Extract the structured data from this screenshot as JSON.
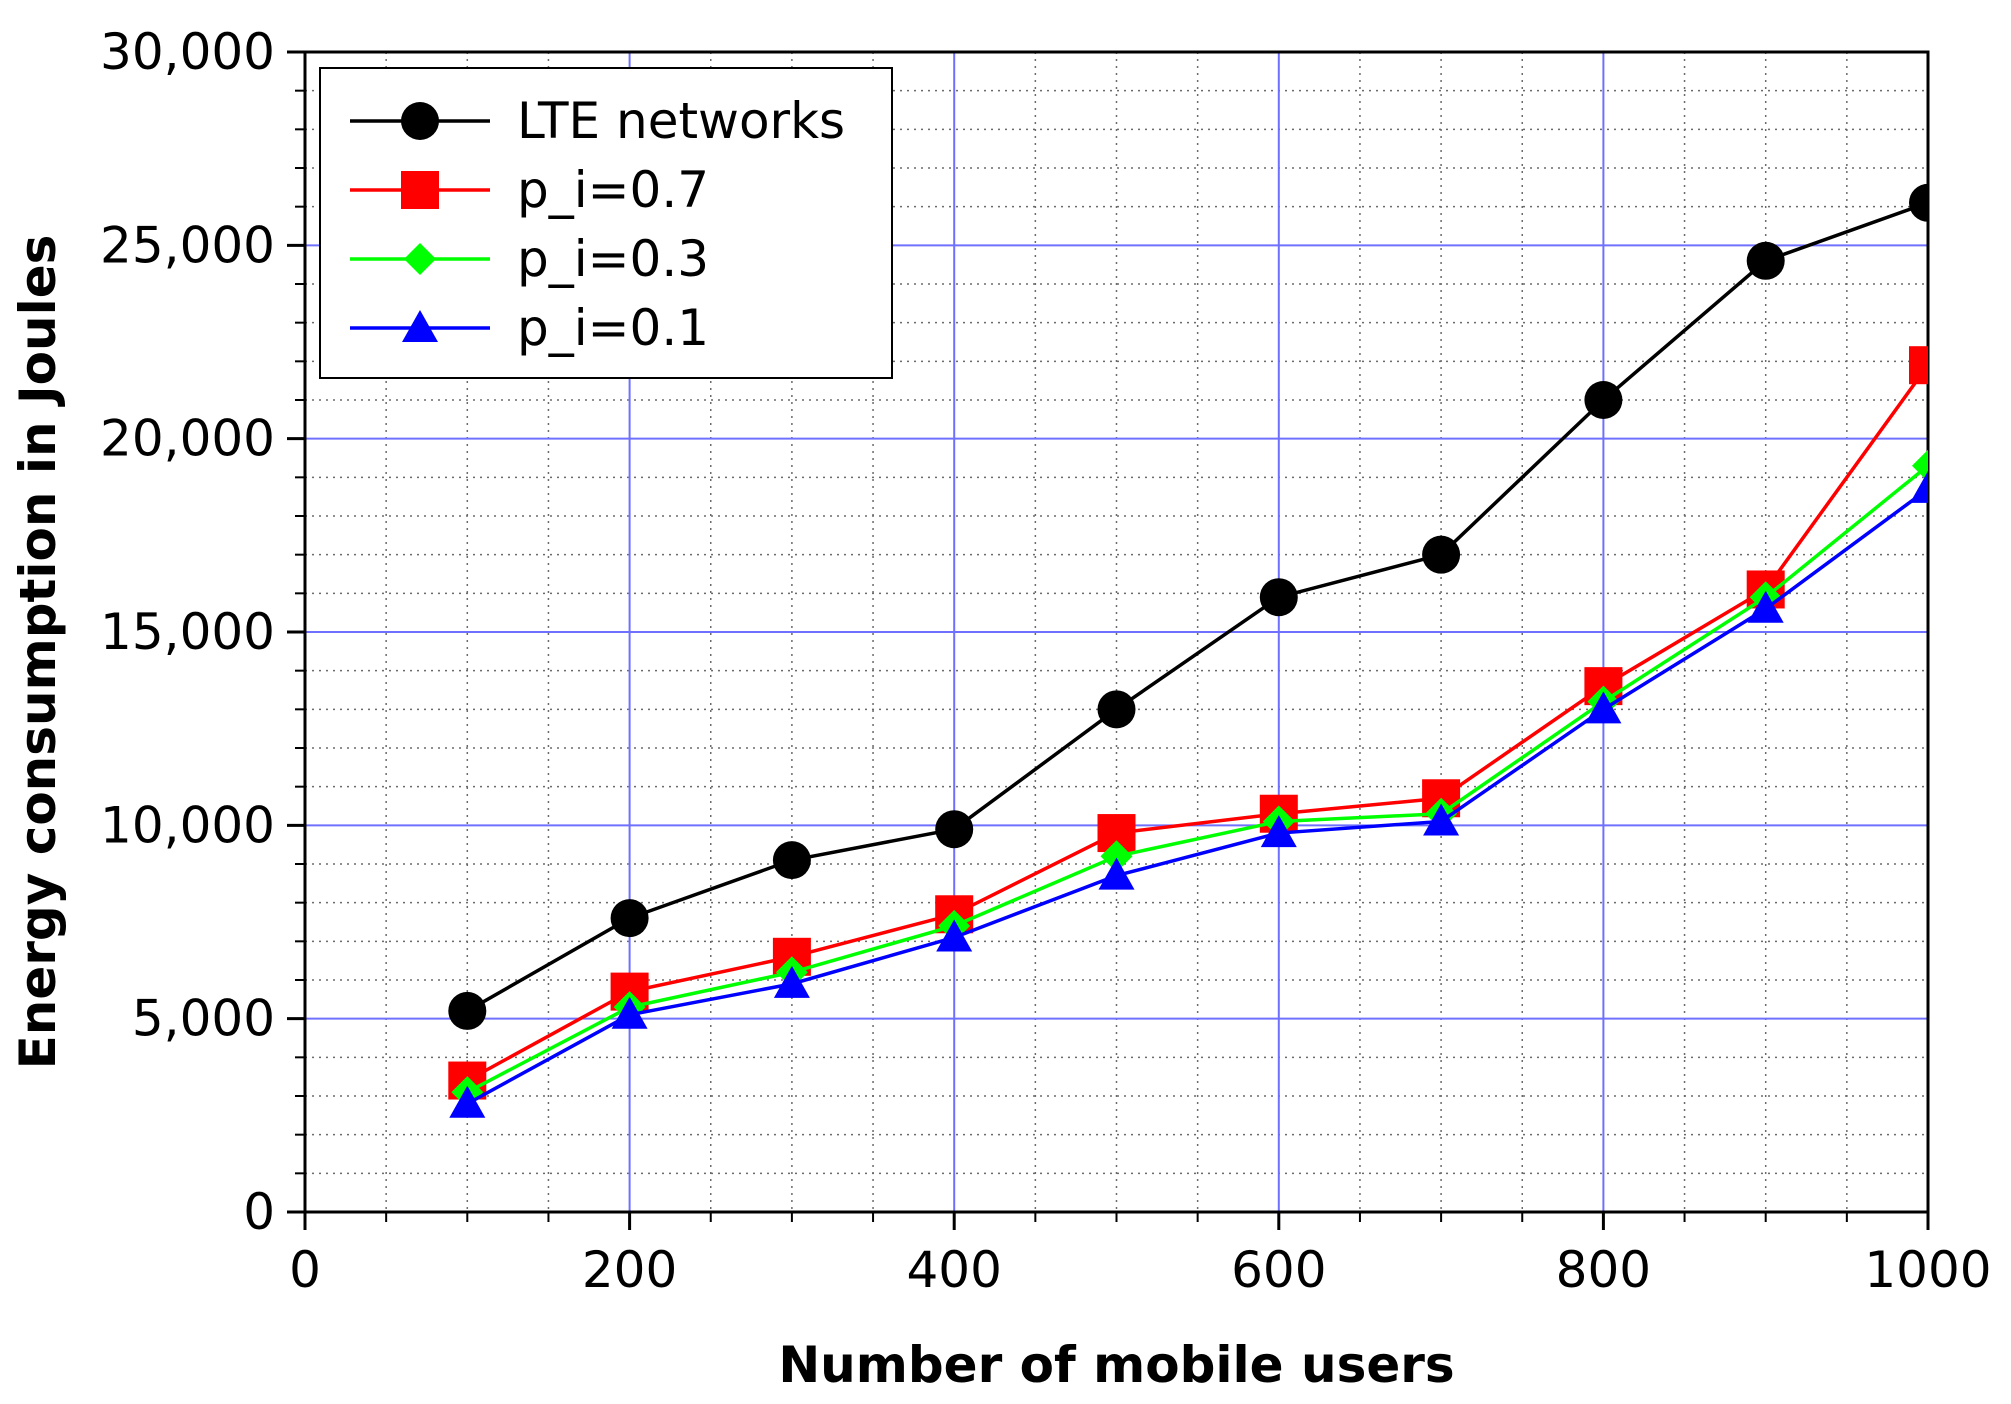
{
  "chart_data": {
    "type": "line",
    "title": "",
    "xlabel": "Number of mobile users",
    "ylabel": "Energy consumption in Joules",
    "xlim": [
      0,
      1000
    ],
    "ylim": [
      0,
      30000
    ],
    "xticks": [
      0,
      200,
      400,
      600,
      800,
      1000
    ],
    "xtick_labels": [
      "0",
      "200",
      "400",
      "600",
      "800",
      "1000"
    ],
    "yticks": [
      0,
      5000,
      10000,
      15000,
      20000,
      25000,
      30000
    ],
    "ytick_labels": [
      "0",
      "5,000",
      "10,000",
      "15,000",
      "20,000",
      "25,000",
      "30,000"
    ],
    "grid": true,
    "legend_position": "top-left",
    "x": [
      100,
      200,
      300,
      400,
      500,
      600,
      700,
      800,
      900,
      1000
    ],
    "series": [
      {
        "name": "LTE networks",
        "color": "#000000",
        "marker": "circle",
        "values": [
          5200,
          7600,
          9100,
          9900,
          13000,
          15900,
          17000,
          21000,
          24600,
          26100
        ]
      },
      {
        "name": "p_i=0.7",
        "color": "#ff0000",
        "marker": "square",
        "values": [
          3400,
          5700,
          6600,
          7700,
          9800,
          10300,
          10700,
          13600,
          16100,
          21900
        ]
      },
      {
        "name": "p_i=0.3",
        "color": "#00ff00",
        "marker": "diamond",
        "values": [
          3100,
          5300,
          6200,
          7400,
          9200,
          10100,
          10300,
          13200,
          15900,
          19300
        ]
      },
      {
        "name": "p_i=0.1",
        "color": "#0000ff",
        "marker": "triangle",
        "values": [
          2800,
          5100,
          5900,
          7100,
          8700,
          9800,
          10100,
          13000,
          15600,
          18700
        ]
      }
    ]
  }
}
